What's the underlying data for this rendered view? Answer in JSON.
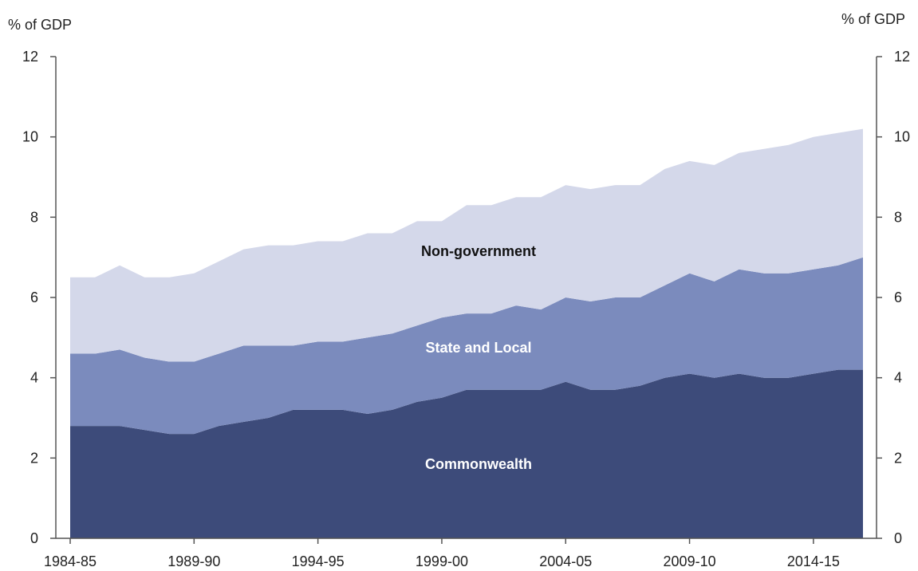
{
  "chart_data": {
    "type": "area",
    "stacked": true,
    "left_axis_unit": "% of GDP",
    "right_axis_unit": "% of GDP",
    "ylim": [
      0,
      12
    ],
    "yticks": [
      0,
      2,
      4,
      6,
      8,
      10,
      12
    ],
    "x": [
      "1984-85",
      "1985-86",
      "1986-87",
      "1987-88",
      "1988-89",
      "1989-90",
      "1990-91",
      "1991-92",
      "1992-93",
      "1993-94",
      "1994-95",
      "1995-96",
      "1996-97",
      "1997-98",
      "1998-99",
      "1999-00",
      "2000-01",
      "2001-02",
      "2002-03",
      "2003-04",
      "2004-05",
      "2005-06",
      "2006-07",
      "2007-08",
      "2008-09",
      "2009-10",
      "2010-11",
      "2011-12",
      "2012-13",
      "2013-14",
      "2014-15",
      "2015-16",
      "2016-17"
    ],
    "xtick_labels": [
      "1984-85",
      "1989-90",
      "1994-95",
      "1999-00",
      "2004-05",
      "2009-10",
      "2014-15"
    ],
    "series": [
      {
        "name": "Commonwealth",
        "color": "#3d4b7a",
        "label_color": "#ffffff",
        "values": [
          2.8,
          2.8,
          2.8,
          2.7,
          2.6,
          2.6,
          2.8,
          2.9,
          3.0,
          3.2,
          3.2,
          3.2,
          3.1,
          3.2,
          3.4,
          3.5,
          3.7,
          3.7,
          3.7,
          3.7,
          3.9,
          3.7,
          3.7,
          3.8,
          4.0,
          4.1,
          4.0,
          4.1,
          4.0,
          4.0,
          4.1,
          4.2,
          4.2
        ]
      },
      {
        "name": "State and Local",
        "color": "#7b8bbd",
        "label_color": "#ffffff",
        "values": [
          1.8,
          1.8,
          1.9,
          1.8,
          1.8,
          1.8,
          1.8,
          1.9,
          1.8,
          1.6,
          1.7,
          1.7,
          1.9,
          1.9,
          1.9,
          2.0,
          1.9,
          1.9,
          2.1,
          2.0,
          2.1,
          2.2,
          2.3,
          2.2,
          2.3,
          2.5,
          2.4,
          2.6,
          2.6,
          2.6,
          2.6,
          2.6,
          2.8
        ]
      },
      {
        "name": "Non-government",
        "color": "#d4d8ea",
        "label_color": "#111111",
        "values": [
          1.9,
          1.9,
          2.1,
          2.0,
          2.1,
          2.2,
          2.3,
          2.4,
          2.5,
          2.5,
          2.5,
          2.5,
          2.6,
          2.5,
          2.6,
          2.4,
          2.7,
          2.7,
          2.7,
          2.8,
          2.8,
          2.8,
          2.8,
          2.8,
          2.9,
          2.8,
          2.9,
          2.9,
          3.1,
          3.2,
          3.3,
          3.3,
          3.2
        ]
      }
    ]
  }
}
